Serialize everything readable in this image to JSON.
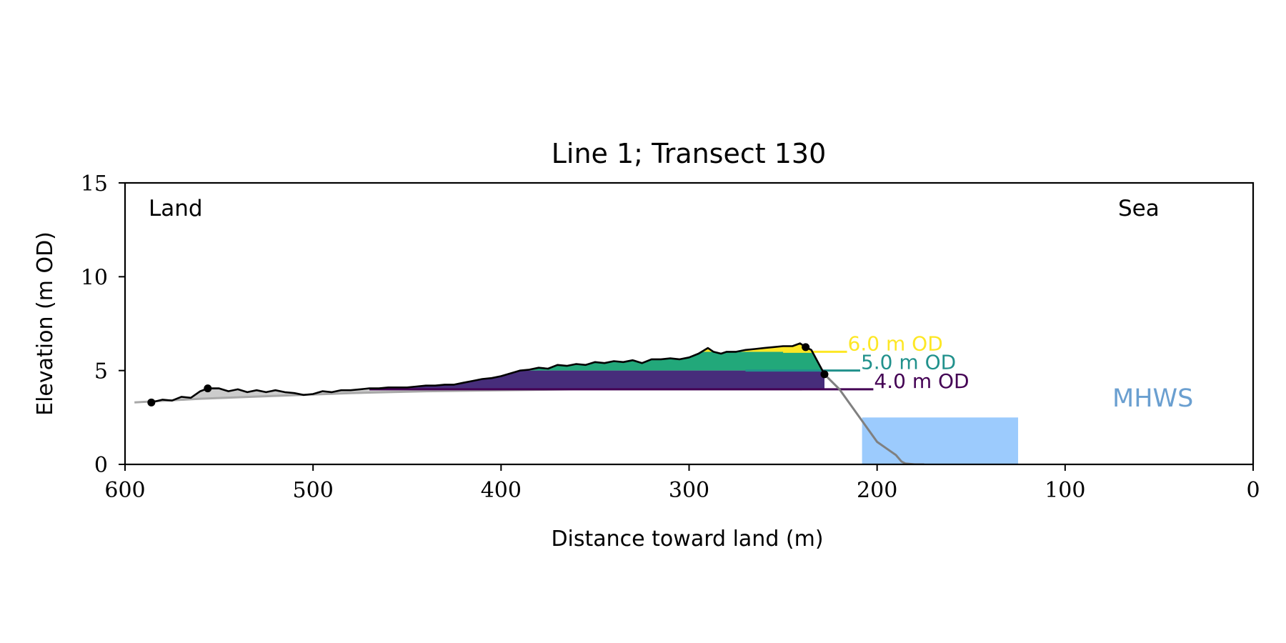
{
  "chart_data": {
    "type": "area",
    "title": "Line 1; Transect 130",
    "xlabel": "Distance toward land (m)",
    "ylabel": "Elevation (m OD)",
    "xlim": [
      600,
      0
    ],
    "ylim": [
      0,
      15
    ],
    "x_ticks": [
      600,
      500,
      400,
      300,
      200,
      100,
      0
    ],
    "y_ticks": [
      0,
      5,
      10,
      15
    ],
    "grid": false,
    "annotations": {
      "left": "Land",
      "right": "Sea",
      "tide": "MHWS"
    },
    "series": [
      {
        "role": "baseline-profile",
        "color": "#cccccc",
        "x": [
          595,
          560,
          520,
          480,
          440,
          400,
          360,
          320,
          280,
          250,
          240
        ],
        "y": [
          3.3,
          3.5,
          3.65,
          3.8,
          3.9,
          3.95,
          4.0,
          4.0,
          4.0,
          4.0,
          4.0
        ]
      },
      {
        "role": "surface-profile",
        "color": "#000000",
        "x": [
          586,
          580,
          575,
          570,
          565,
          560,
          556,
          550,
          545,
          540,
          535,
          530,
          525,
          520,
          515,
          510,
          505,
          500,
          495,
          490,
          485,
          480,
          475,
          470,
          465,
          460,
          455,
          450,
          445,
          440,
          435,
          430,
          425,
          420,
          415,
          410,
          405,
          400,
          395,
          390,
          385,
          380,
          375,
          370,
          365,
          360,
          355,
          350,
          345,
          340,
          335,
          330,
          325,
          320,
          315,
          310,
          305,
          300,
          295,
          290,
          287,
          283,
          280,
          275,
          270,
          265,
          260,
          255,
          250,
          245,
          241,
          238,
          235,
          228
        ],
        "y": [
          3.3,
          3.45,
          3.4,
          3.6,
          3.55,
          3.9,
          4.05,
          4.05,
          3.9,
          4.0,
          3.85,
          3.95,
          3.85,
          3.95,
          3.85,
          3.8,
          3.7,
          3.75,
          3.9,
          3.85,
          3.95,
          3.95,
          4.0,
          4.05,
          4.05,
          4.1,
          4.1,
          4.1,
          4.15,
          4.2,
          4.2,
          4.25,
          4.25,
          4.35,
          4.45,
          4.55,
          4.6,
          4.7,
          4.85,
          5.0,
          5.05,
          5.15,
          5.1,
          5.3,
          5.25,
          5.35,
          5.3,
          5.45,
          5.4,
          5.5,
          5.45,
          5.55,
          5.4,
          5.6,
          5.6,
          5.65,
          5.6,
          5.7,
          5.9,
          6.2,
          6.0,
          5.9,
          6.0,
          6.0,
          6.1,
          6.15,
          6.2,
          6.25,
          6.3,
          6.3,
          6.45,
          6.25,
          6.1,
          4.8
        ]
      },
      {
        "role": "seaward-slope",
        "color": "#808080",
        "x": [
          228,
          220,
          210,
          200,
          195,
          190,
          187,
          185,
          180,
          175
        ],
        "y": [
          4.8,
          4.0,
          2.6,
          1.2,
          0.85,
          0.5,
          0.15,
          0.05,
          0.0,
          0.0
        ]
      }
    ],
    "thresholds": [
      {
        "label": "6.0 m OD",
        "level": 6.0,
        "color": "#fde725",
        "x_end": 216
      },
      {
        "label": "5.0 m OD",
        "level": 5.0,
        "color": "#21918c",
        "x_end": 209
      },
      {
        "label": "4.0 m OD",
        "level": 4.0,
        "color": "#440154",
        "x_end": 202
      }
    ],
    "bands": [
      {
        "from": 5.0,
        "to": 6.0,
        "color": "#22a87a"
      },
      {
        "from": 4.0,
        "to": 5.0,
        "color": "#472d7b"
      },
      {
        "from": 6.0,
        "to": 7.0,
        "color": "#fde725"
      }
    ],
    "mhws_box": {
      "x": [
        208,
        125
      ],
      "y": [
        0,
        2.5
      ],
      "color": "#9ccbfd"
    },
    "marker_points": [
      {
        "x": 586,
        "y": 3.3
      },
      {
        "x": 556,
        "y": 4.05
      },
      {
        "x": 238,
        "y": 6.25
      },
      {
        "x": 228,
        "y": 4.8
      }
    ]
  }
}
